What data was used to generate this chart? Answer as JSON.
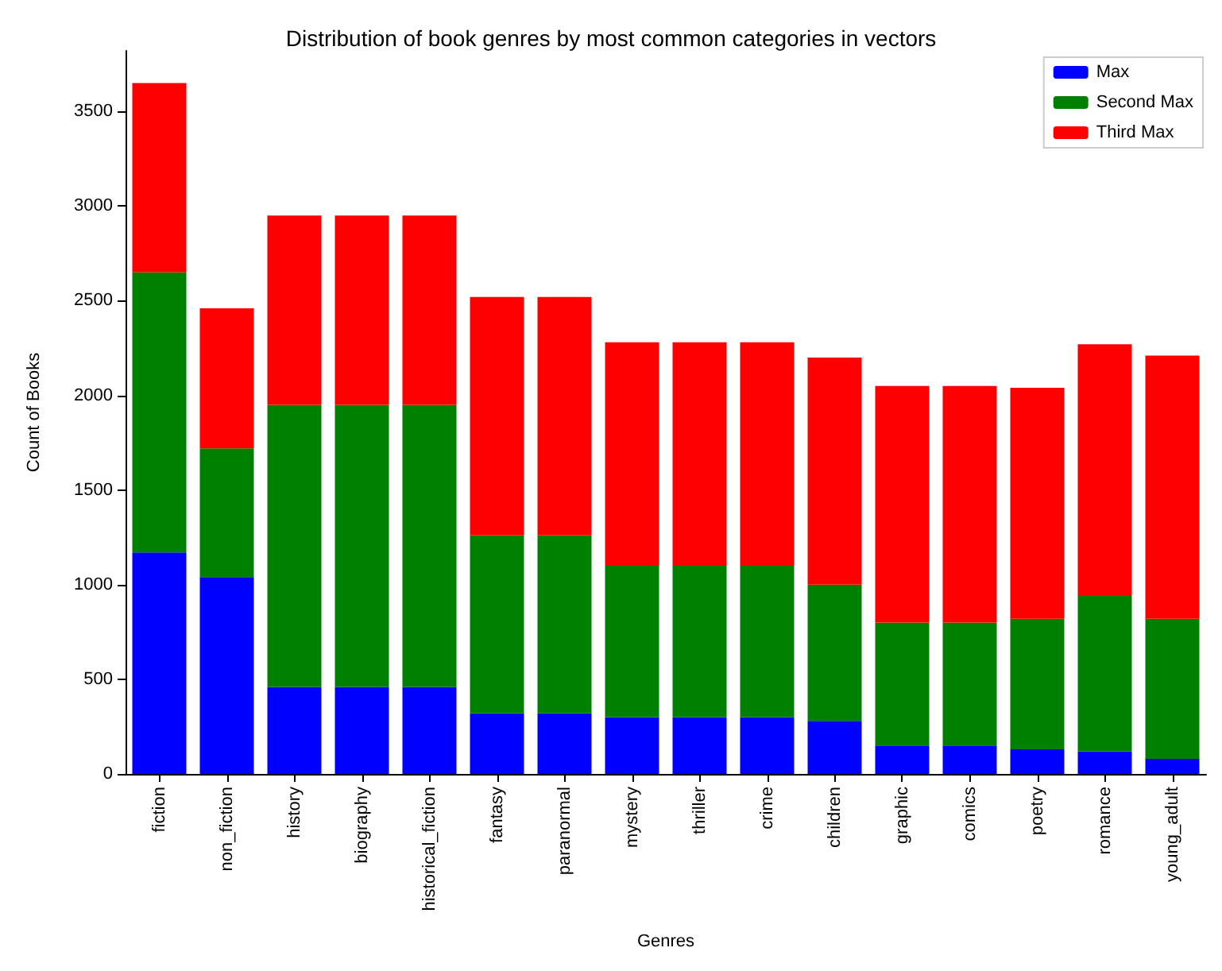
{
  "chart_data": {
    "type": "bar",
    "title": "Distribution of book genres by most common categories in vectors",
    "xlabel": "Genres",
    "ylabel": "Count of Books",
    "categories": [
      "fiction",
      "non_fiction",
      "history",
      "biography",
      "historical_fiction",
      "fantasy",
      "paranormal",
      "mystery",
      "thriller",
      "crime",
      "children",
      "graphic",
      "comics",
      "poetry",
      "romance",
      "young_adult"
    ],
    "series": [
      {
        "name": "Max",
        "color": "#0000ff",
        "values": [
          1170,
          1040,
          460,
          460,
          460,
          320,
          320,
          300,
          300,
          300,
          280,
          150,
          150,
          130,
          120,
          80
        ]
      },
      {
        "name": "Second Max",
        "color": "#008000",
        "values": [
          1480,
          680,
          1490,
          1490,
          1490,
          940,
          940,
          800,
          800,
          800,
          720,
          650,
          650,
          690,
          820,
          740
        ]
      },
      {
        "name": "Third Max",
        "color": "#ff0000",
        "values": [
          1000,
          740,
          1000,
          1000,
          1000,
          1260,
          1260,
          1180,
          1180,
          1180,
          1200,
          1250,
          1250,
          1220,
          1330,
          1390
        ]
      }
    ],
    "stacked": true,
    "ylim": [
      0,
      3820
    ],
    "yticks": [
      0,
      500,
      1000,
      1500,
      2000,
      2500,
      3000,
      3500
    ],
    "grid": false,
    "legend": "top right"
  }
}
